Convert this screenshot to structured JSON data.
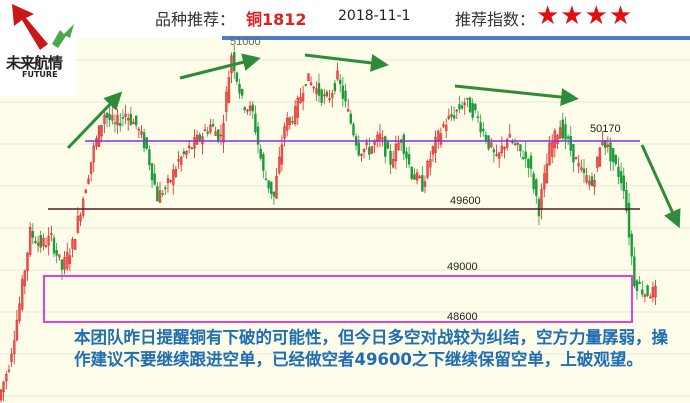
{
  "header": {
    "recommend_label": "品种推荐：",
    "symbol": "铜1812",
    "date": "2018-11-1",
    "index_label": "推荐指数：",
    "stars": 4,
    "star_glyph": "★"
  },
  "logo": {
    "cn": "未来航情",
    "en": "FUTURE"
  },
  "colors": {
    "up": "#e02020",
    "down": "#1a9a3a",
    "resistance": "#8a2be2",
    "support": "#5a1a2a",
    "box": "#e040e0",
    "arrow": "#2e8b3a",
    "note": "#1f6db3",
    "star": "#e01010"
  },
  "chart_data": {
    "type": "candlestick",
    "top_tick": "51000",
    "levels": [
      {
        "label": "50170",
        "value": 50170
      },
      {
        "label": "49600",
        "value": 49600
      },
      {
        "label": "49000",
        "value": 49000
      },
      {
        "label": "48600",
        "value": 48600
      }
    ],
    "closes": [
      48000,
      48300,
      48800,
      49400,
      49300,
      49350,
      49100,
      49300,
      49700,
      50100,
      50400,
      50300,
      50400,
      50300,
      50100,
      49700,
      49800,
      50000,
      50100,
      50200,
      50300,
      50200,
      50900,
      50500,
      50400,
      49900,
      49700,
      50300,
      50400,
      50700,
      50600,
      50500,
      50700,
      50400,
      50100,
      50100,
      50200,
      50000,
      50200,
      49900,
      49800,
      50100,
      50300,
      50400,
      50500,
      50400,
      50200,
      50000,
      50200,
      50100,
      50000,
      49600,
      50100,
      50300,
      50100,
      49900,
      49800,
      50200,
      50000,
      49800,
      49000,
      48900,
      48900
    ]
  },
  "note": "本团队昨日提醒铜有下破的可能性，但今日多空对战较为纠结，空方力量孱弱，操作建议不要继续跟进空单，已经做空者49600之下继续保留空单，上破观望。"
}
